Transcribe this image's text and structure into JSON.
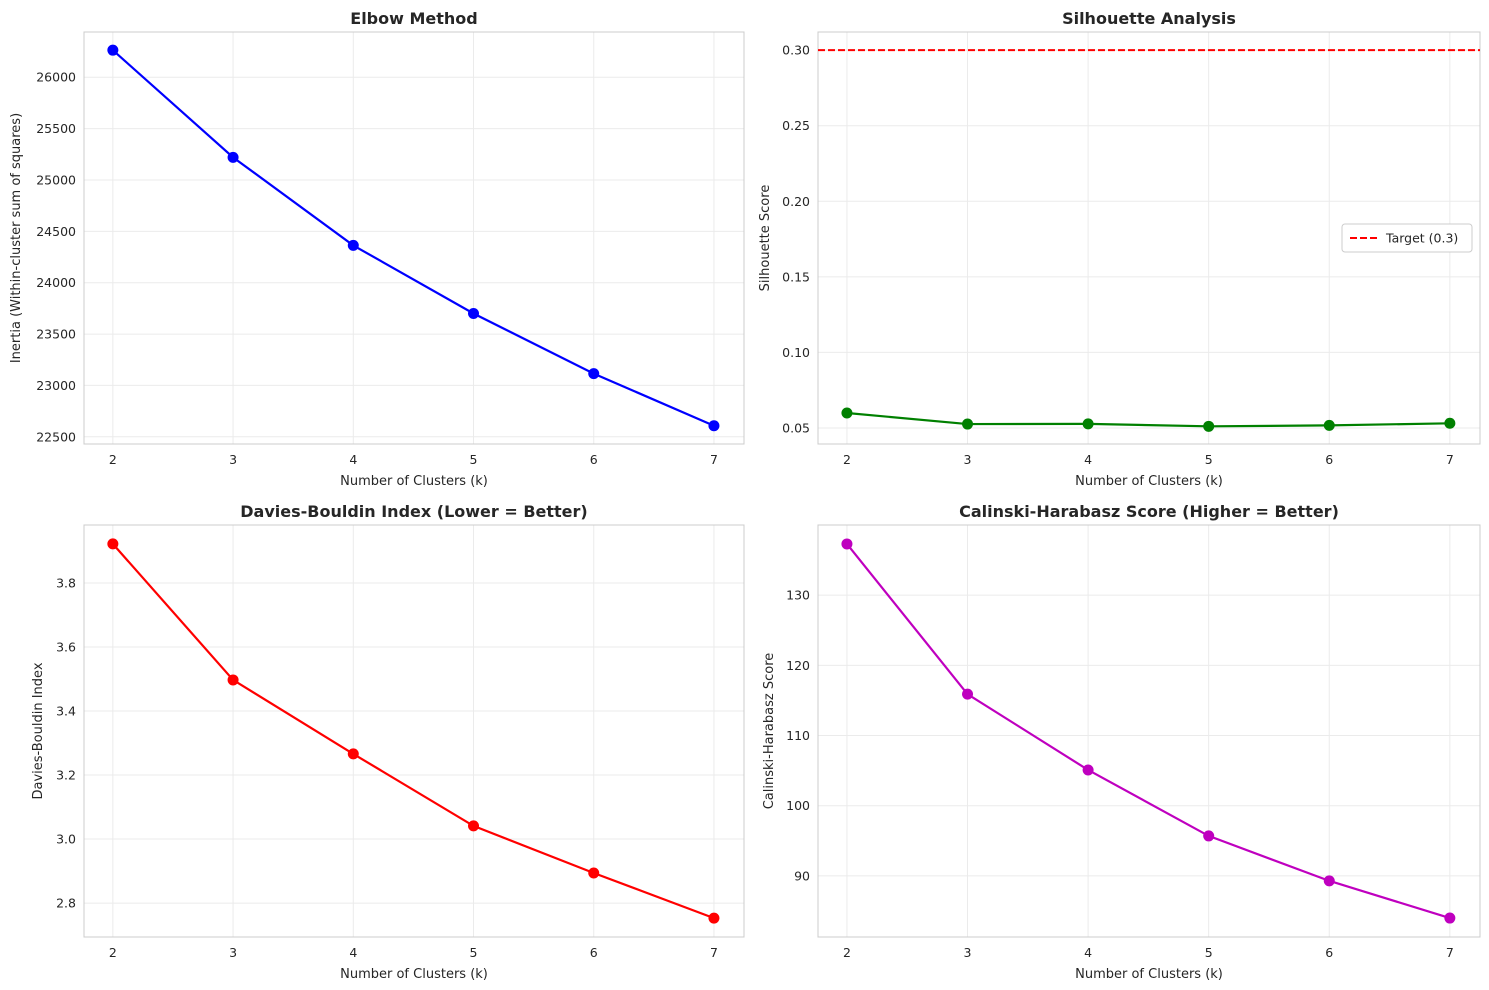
{
  "chart_data": [
    {
      "type": "line",
      "title": "Elbow Method",
      "xlabel": "Number of Clusters (k)",
      "ylabel": "Inertia (Within-cluster sum of squares)",
      "x": [
        2,
        3,
        4,
        5,
        6,
        7
      ],
      "values": [
        26263,
        25220,
        24363,
        23700,
        23115,
        22608
      ],
      "xlim": [
        1.76,
        7.25
      ],
      "ylim": [
        22430,
        26440
      ],
      "yticks": [
        22500,
        23000,
        23500,
        24000,
        24500,
        25000,
        25500,
        26000
      ],
      "xticks": [
        2,
        3,
        4,
        5,
        6,
        7
      ],
      "color": "#0000ff",
      "grid": true
    },
    {
      "type": "line",
      "title": "Silhouette Analysis",
      "xlabel": "Number of Clusters (k)",
      "ylabel": "Silhouette Score",
      "x": [
        2,
        3,
        4,
        5,
        6,
        7
      ],
      "values": [
        0.0599,
        0.0526,
        0.0527,
        0.0511,
        0.0517,
        0.0531
      ],
      "xlim": [
        1.76,
        7.25
      ],
      "ylim": [
        0.0394,
        0.312
      ],
      "yticks": [
        0.05,
        0.1,
        0.15,
        0.2,
        0.25,
        0.3
      ],
      "ytick_labels": [
        "0.05",
        "0.10",
        "0.15",
        "0.20",
        "0.25",
        "0.30"
      ],
      "xticks": [
        2,
        3,
        4,
        5,
        6,
        7
      ],
      "color": "#008000",
      "hline": {
        "value": 0.3,
        "color": "#ff0000",
        "style": "dashed",
        "label": "Target (0.3)"
      },
      "legend": "center-right",
      "grid": true
    },
    {
      "type": "line",
      "title": "Davies-Bouldin Index (Lower = Better)",
      "xlabel": "Number of Clusters (k)",
      "ylabel": "Davies-Bouldin Index",
      "x": [
        2,
        3,
        4,
        5,
        6,
        7
      ],
      "values": [
        3.922,
        3.497,
        3.266,
        3.041,
        2.894,
        2.753
      ],
      "xlim": [
        1.76,
        7.25
      ],
      "ylim": [
        2.694,
        3.981
      ],
      "yticks": [
        2.8,
        3.0,
        3.2,
        3.4,
        3.6,
        3.8
      ],
      "ytick_labels": [
        "2.8",
        "3.0",
        "3.2",
        "3.4",
        "3.6",
        "3.8"
      ],
      "xticks": [
        2,
        3,
        4,
        5,
        6,
        7
      ],
      "color": "#ff0000",
      "grid": true
    },
    {
      "type": "line",
      "title": "Calinski-Harabasz Score (Higher = Better)",
      "xlabel": "Number of Clusters (k)",
      "ylabel": "Calinski-Harabasz Score",
      "x": [
        2,
        3,
        4,
        5,
        6,
        7
      ],
      "values": [
        137.3,
        115.9,
        105.1,
        95.7,
        89.3,
        84.0
      ],
      "xlim": [
        1.76,
        7.25
      ],
      "ylim": [
        81.3,
        140.0
      ],
      "yticks": [
        90,
        100,
        110,
        120,
        130
      ],
      "xticks": [
        2,
        3,
        4,
        5,
        6,
        7
      ],
      "color": "#bf00bf",
      "grid": true
    }
  ]
}
